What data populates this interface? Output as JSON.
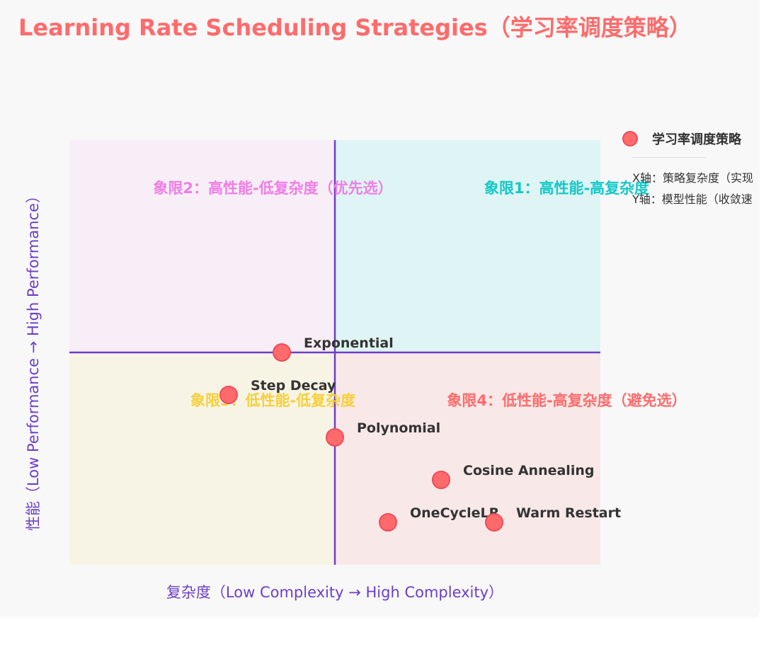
{
  "title": "Learning Rate Scheduling Strategies（学习率调度策略）",
  "colors": {
    "accent": "#ff6b6b",
    "axis": "#6c3fc9",
    "q1_bg": "#dff4f4",
    "q2_bg": "#f8eef7",
    "q3_bg": "#f8f4e5",
    "q4_bg": "#f8e8e8",
    "q1_text": "#14c8c8",
    "q2_text": "#f07ee6",
    "q3_text": "#f7cf3b",
    "q4_text": "#ff6b6b"
  },
  "legend": {
    "series_label": "学习率调度策略",
    "x_note": "X轴：策略复杂度（实现",
    "y_note": "Y轴：模型性能（收敛速"
  },
  "chart_data": {
    "type": "scatter",
    "title": "Learning Rate Scheduling Strategies（学习率调度策略）",
    "xlabel": "复杂度（Low Complexity → High Complexity）",
    "ylabel": "性能（Low Performance → High Performance）",
    "xlim": [
      0,
      1
    ],
    "ylim": [
      0,
      1
    ],
    "quadrant_split": [
      0.5,
      0.5
    ],
    "quadrants": {
      "q1": "象限1：高性能-高复杂度",
      "q2": "象限2：高性能-低复杂度（优先选）",
      "q3": "象限3：低性能-低复杂度",
      "q4": "象限4：低性能-高复杂度（避免选）"
    },
    "series": [
      {
        "name": "学习率调度策略",
        "points": [
          {
            "label": "Exponential",
            "x": 0.4,
            "y": 0.5
          },
          {
            "label": "Step Decay",
            "x": 0.3,
            "y": 0.4
          },
          {
            "label": "Polynomial",
            "x": 0.5,
            "y": 0.3
          },
          {
            "label": "Cosine Annealing",
            "x": 0.7,
            "y": 0.2
          },
          {
            "label": "OneCycleLR",
            "x": 0.6,
            "y": 0.1
          },
          {
            "label": "Warm Restart",
            "x": 0.8,
            "y": 0.1
          }
        ]
      }
    ]
  }
}
